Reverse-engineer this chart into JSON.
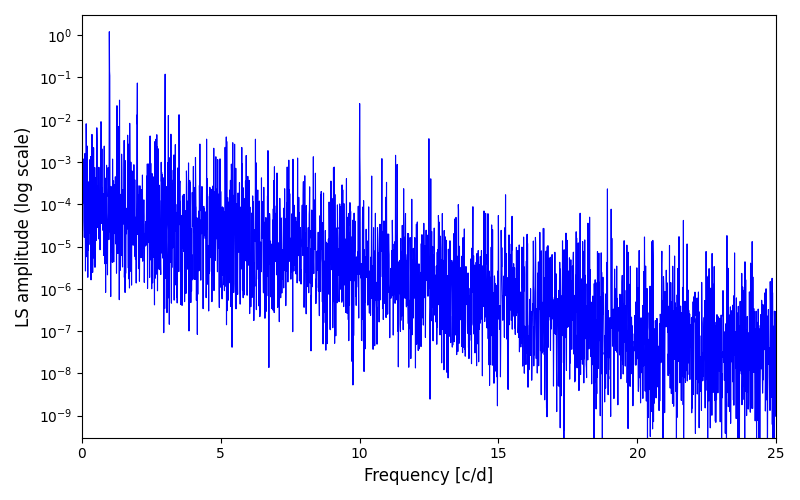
{
  "title": "",
  "xlabel": "Frequency [c/d]",
  "ylabel": "LS amplitude (log scale)",
  "line_color": "#0000ff",
  "line_width": 0.8,
  "xlim": [
    0,
    25
  ],
  "ylim_log": [
    3e-10,
    3
  ],
  "freq_min": 0.0,
  "freq_max": 25.0,
  "n_points": 3000,
  "seed": 137,
  "background_color": "#ffffff",
  "figsize": [
    8.0,
    5.0
  ],
  "dpi": 100
}
